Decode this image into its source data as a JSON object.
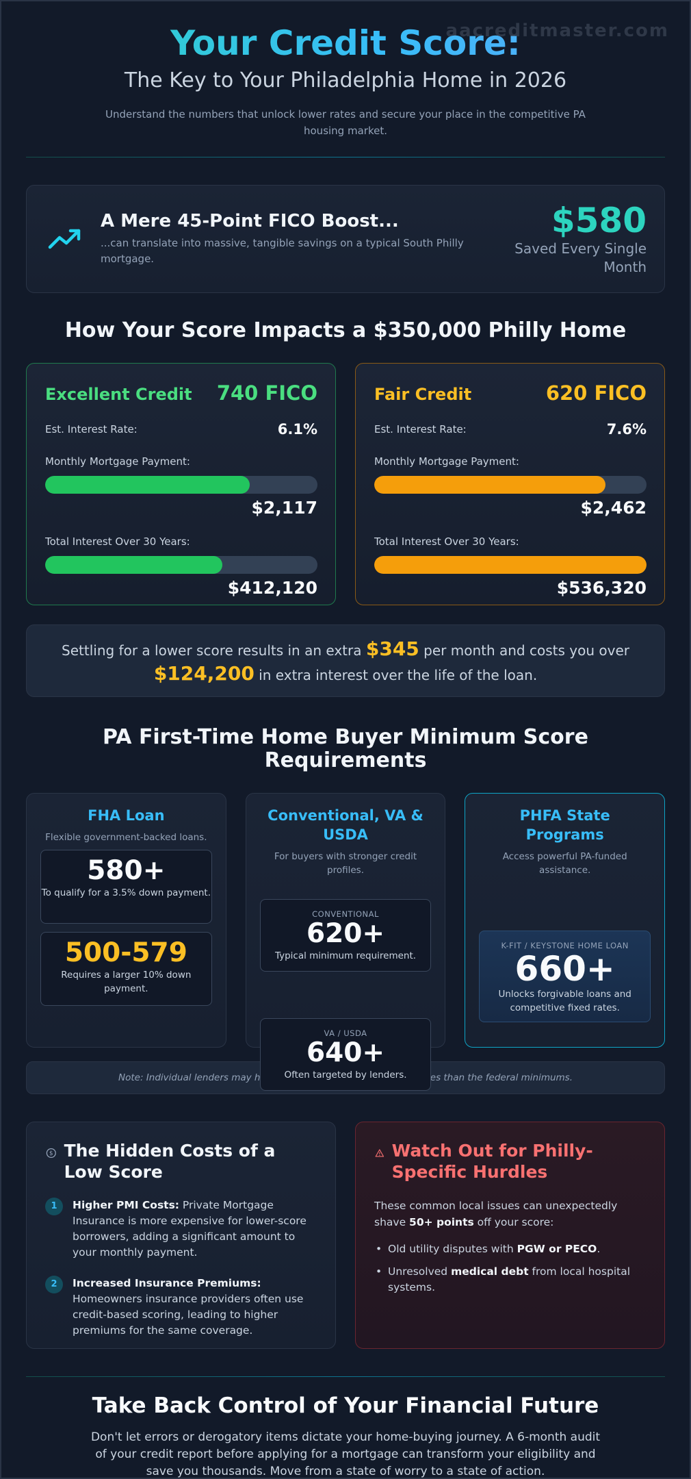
{
  "watermark": "aacreditmaster.com",
  "header": {
    "title": "Your Credit Score:",
    "subtitle": "The Key to Your Philadelphia Home in 2026",
    "intro": "Understand the numbers that unlock lower rates and secure your place in the competitive PA housing market."
  },
  "boost": {
    "icon": "trending-up-icon",
    "title": "A Mere 45-Point FICO Boost...",
    "subtitle": "...can translate into massive, tangible savings on a typical South Philly mortgage.",
    "amount": "$580",
    "caption": "Saved Every Single Month"
  },
  "impact": {
    "heading": "How Your Score Impacts a $350,000 Philly Home",
    "cards": [
      {
        "name": "Excellent Credit",
        "score": "740 FICO",
        "rate_label": "Est. Interest Rate:",
        "rate": "6.1%",
        "payment_label": "Monthly Mortgage Payment:",
        "payment": "$2,117",
        "payment_fill": 0.75,
        "interest_label": "Total Interest Over 30 Years:",
        "interest": "$412,120",
        "interest_fill": 0.65
      },
      {
        "name": "Fair Credit",
        "score": "620 FICO",
        "rate_label": "Est. Interest Rate:",
        "rate": "7.6%",
        "payment_label": "Monthly Mortgage Payment:",
        "payment": "$2,462",
        "payment_fill": 0.85,
        "interest_label": "Total Interest Over 30 Years:",
        "interest": "$536,320",
        "interest_fill": 1.0
      }
    ],
    "callout": {
      "part1": "Settling for a lower score results in an extra ",
      "monthly": "$345",
      "part2": " per month and costs you over ",
      "total": "$124,200",
      "part3": " in extra interest over the life of the loan."
    }
  },
  "requirements": {
    "heading": "PA First-Time Home Buyer Minimum Score Requirements",
    "fha": {
      "title": "FHA Loan",
      "desc": "Flexible government-backed loans.",
      "box1_score": "580+",
      "box1_note": "To qualify for a 3.5% down payment.",
      "box2_score": "500-579",
      "box2_note": "Requires a larger 10% down payment."
    },
    "conventional": {
      "title": "Conventional, VA & USDA",
      "desc": "For buyers with stronger credit profiles.",
      "box1_label": "CONVENTIONAL",
      "box1_score": "620+",
      "box1_note": "Typical minimum requirement.",
      "box2_label": "VA / USDA",
      "box2_score": "640+",
      "box2_note": "Often targeted by lenders."
    },
    "phfa": {
      "title": "PHFA State Programs",
      "desc": "Access powerful PA-funded assistance.",
      "box_label": "K-FIT / KEYSTONE HOME LOAN",
      "box_score": "660+",
      "box_note": "Unlocks forgivable loans and competitive fixed rates."
    },
    "note": "Note: Individual lenders may have \"overlays,\" requiring higher scores than the federal minimums."
  },
  "hidden_costs": {
    "icon": "dollar-circle-icon",
    "title": "The Hidden Costs of a Low Score",
    "items": [
      {
        "num": "1",
        "bold": "Higher PMI Costs:",
        "text": " Private Mortgage Insurance is more expensive for lower-score borrowers, adding a significant amount to your monthly payment."
      },
      {
        "num": "2",
        "bold": "Increased Insurance Premiums:",
        "text": " Homeowners insurance providers often use credit-based scoring, leading to higher premiums for the same coverage."
      }
    ]
  },
  "watch_out": {
    "icon": "warning-triangle-icon",
    "title": "Watch Out for Philly-Specific Hurdles",
    "intro1": "These common local issues can unexpectedly shave ",
    "intro_bold": "50+ points",
    "intro2": " off your score:",
    "bullets": [
      {
        "pre": "Old utility disputes with ",
        "bold": "PGW or PECO",
        "post": "."
      },
      {
        "pre": "Unresolved ",
        "bold": "medical debt",
        "post": " from local hospital systems."
      }
    ]
  },
  "footer": {
    "title": "Take Back Control of Your Financial Future",
    "text": "Don't let errors or derogatory items dictate your home-buying journey. A 6-month audit of your credit report before applying for a mortgage can transform your eligibility and save you thousands. Move from a state of worry to a state of action."
  }
}
